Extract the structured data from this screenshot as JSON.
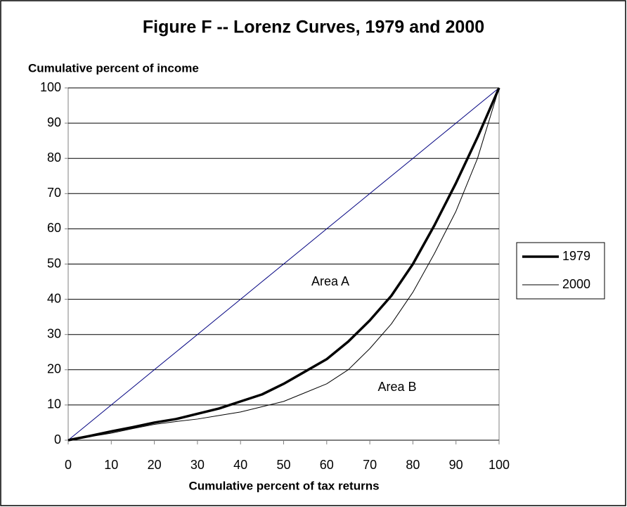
{
  "chart_data": {
    "type": "line",
    "title": "Figure F -- Lorenz Curves, 1979 and 2000",
    "y_label": "Cumulative percent of income",
    "x_label": "Cumulative percent of tax returns",
    "annotations": [
      "Area A",
      "Area B"
    ],
    "x": [
      0,
      5,
      10,
      15,
      20,
      25,
      30,
      35,
      40,
      45,
      50,
      55,
      60,
      65,
      70,
      75,
      80,
      85,
      90,
      95,
      100
    ],
    "series": [
      {
        "color": "#000080",
        "width": 1,
        "values": [
          0,
          5,
          10,
          15,
          20,
          25,
          30,
          35,
          40,
          45,
          50,
          55,
          60,
          65,
          70,
          75,
          80,
          85,
          90,
          95,
          100
        ]
      },
      {
        "name": "1979",
        "color": "#000000",
        "width": 3.5,
        "values": [
          0,
          1.2,
          2.5,
          3.7,
          5,
          6,
          7.5,
          9,
          11,
          13,
          16,
          19.5,
          23,
          28,
          34,
          41,
          50,
          61,
          73,
          86,
          100
        ]
      },
      {
        "name": "2000",
        "color": "#000000",
        "width": 1,
        "values": [
          0,
          1,
          2,
          3.3,
          4.5,
          5.3,
          6,
          7,
          8,
          9.5,
          11,
          13.5,
          16,
          20,
          26,
          33,
          42,
          53,
          65,
          80,
          100
        ]
      }
    ],
    "xlim": [
      0,
      100
    ],
    "xticks": [
      0,
      10,
      20,
      30,
      40,
      50,
      60,
      70,
      80,
      90,
      100
    ],
    "ylim": [
      0,
      100
    ],
    "yticks": [
      0,
      10,
      20,
      30,
      40,
      50,
      60,
      70,
      80,
      90,
      100
    ],
    "grid": true
  }
}
